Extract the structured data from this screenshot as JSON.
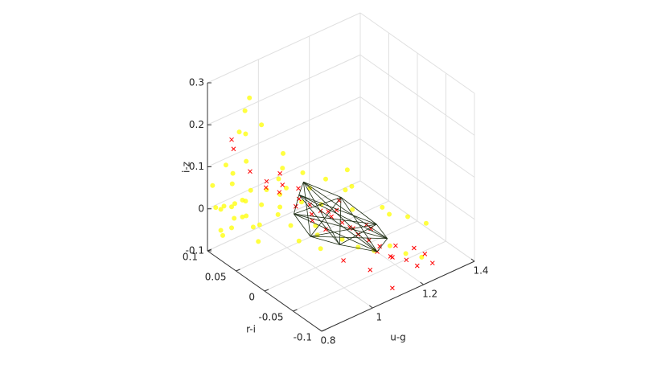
{
  "chart_data": {
    "type": "scatter3d",
    "xlabel": "u-g",
    "ylabel": "r-i",
    "zlabel": "i-z",
    "xlim": [
      0.8,
      1.4
    ],
    "ylim": [
      -0.1,
      0.1
    ],
    "zlim": [
      -0.1,
      0.3
    ],
    "xticks": [
      0.8,
      1,
      1.2,
      1.4
    ],
    "yticks": [
      -0.1,
      -0.05,
      0,
      0.05,
      0.1
    ],
    "zticks": [
      -0.1,
      0,
      0.1,
      0.2,
      0.3
    ],
    "grid": true,
    "series": [
      {
        "color": "#ffff00",
        "marker": "dot",
        "x": [
          0.81,
          0.82,
          0.83,
          0.84,
          0.85,
          0.86,
          0.87,
          0.82,
          0.84,
          0.86,
          0.88,
          0.9,
          0.83,
          0.85,
          0.87,
          0.89,
          0.92,
          0.95,
          0.81,
          0.84,
          0.88,
          0.93,
          0.97,
          1.0,
          1.03,
          1.06,
          1.1,
          1.14,
          1.18,
          1.22,
          1.26,
          0.9,
          0.95,
          1.0,
          1.05,
          1.1,
          1.15,
          1.2,
          0.86,
          0.9,
          0.94,
          0.98,
          1.02,
          0.85,
          0.88,
          0.92,
          0.96,
          1.0,
          1.08,
          1.12,
          1.25,
          1.3,
          0.83,
          0.87,
          0.91,
          0.95,
          0.99,
          1.04,
          0.86,
          0.92
        ],
        "y": [
          0.09,
          0.08,
          0.09,
          0.07,
          0.08,
          0.06,
          0.07,
          0.1,
          0.05,
          0.08,
          0.06,
          0.05,
          0.07,
          0.09,
          0.04,
          0.06,
          0.03,
          0.04,
          0.06,
          0.05,
          0.08,
          0.02,
          0.03,
          0.0,
          0.01,
          -0.02,
          -0.03,
          -0.04,
          -0.05,
          -0.06,
          -0.07,
          0.02,
          0.0,
          -0.01,
          -0.03,
          -0.02,
          -0.05,
          -0.04,
          0.06,
          0.05,
          0.03,
          0.02,
          0.0,
          0.08,
          0.07,
          0.05,
          0.04,
          0.01,
          -0.02,
          -0.01,
          -0.05,
          -0.06,
          0.09,
          0.07,
          0.06,
          0.04,
          0.02,
          0.0,
          0.1,
          0.08
        ],
        "z": [
          0.01,
          0.02,
          0.0,
          0.03,
          0.01,
          0.04,
          -0.01,
          0.05,
          0.02,
          -0.02,
          0.06,
          0.03,
          0.08,
          0.1,
          0.0,
          -0.03,
          0.02,
          0.05,
          0.12,
          0.15,
          0.18,
          0.09,
          -0.02,
          0.0,
          -0.04,
          -0.03,
          -0.05,
          -0.06,
          -0.05,
          -0.07,
          -0.08,
          0.12,
          0.14,
          0.06,
          0.1,
          0.03,
          0.05,
          0.01,
          0.2,
          0.22,
          0.16,
          -0.05,
          -0.06,
          -0.04,
          0.24,
          0.06,
          0.11,
          0.08,
          0.13,
          0.07,
          0.0,
          -0.02,
          -0.05,
          0.03,
          -0.07,
          0.02,
          0.04,
          0.1,
          -0.08,
          0.25
        ]
      },
      {
        "color": "#ff0000",
        "marker": "x",
        "x": [
          0.98,
          1.0,
          1.02,
          1.04,
          1.06,
          1.08,
          1.1,
          1.12,
          1.14,
          1.0,
          1.03,
          1.05,
          1.07,
          1.09,
          1.11,
          0.96,
          0.99,
          1.01,
          1.04,
          1.06,
          1.13,
          1.16,
          1.18,
          1.2,
          1.22,
          1.25,
          0.92,
          0.94,
          0.95,
          0.9,
          0.97,
          1.15,
          1.19,
          1.23,
          1.08,
          1.02,
          0.85,
          0.88,
          1.28,
          1.1
        ],
        "y": [
          0.02,
          0.01,
          0.0,
          -0.01,
          -0.02,
          -0.03,
          -0.03,
          -0.04,
          -0.05,
          0.03,
          0.02,
          0.0,
          -0.01,
          -0.02,
          -0.04,
          0.04,
          0.03,
          0.01,
          0.0,
          -0.01,
          -0.05,
          -0.06,
          -0.06,
          -0.07,
          -0.08,
          -0.08,
          0.05,
          0.06,
          0.04,
          0.07,
          0.05,
          -0.03,
          -0.05,
          -0.07,
          -0.06,
          -0.04,
          0.08,
          0.09,
          -0.08,
          -0.09
        ],
        "z": [
          0.05,
          0.04,
          0.03,
          0.02,
          0.01,
          0.0,
          -0.02,
          -0.03,
          -0.04,
          0.06,
          0.0,
          0.02,
          0.05,
          -0.01,
          0.01,
          0.07,
          0.02,
          0.0,
          -0.02,
          0.03,
          -0.05,
          -0.06,
          -0.04,
          -0.07,
          -0.08,
          -0.06,
          0.08,
          0.05,
          0.1,
          0.09,
          0.04,
          -0.02,
          -0.08,
          -0.05,
          -0.07,
          -0.05,
          0.17,
          0.13,
          -0.09,
          -0.09
        ]
      }
    ],
    "hull": {
      "color": "#1a2a10",
      "x": [
        0.98,
        1.02,
        1.1,
        1.15,
        1.17,
        1.13,
        1.05,
        0.98,
        0.96
      ],
      "y": [
        0.02,
        0.03,
        0.0,
        -0.04,
        -0.05,
        -0.05,
        -0.02,
        0.0,
        0.02
      ],
      "z": [
        0.06,
        0.07,
        0.04,
        0.0,
        -0.03,
        -0.05,
        -0.04,
        -0.02,
        0.02
      ]
    }
  }
}
